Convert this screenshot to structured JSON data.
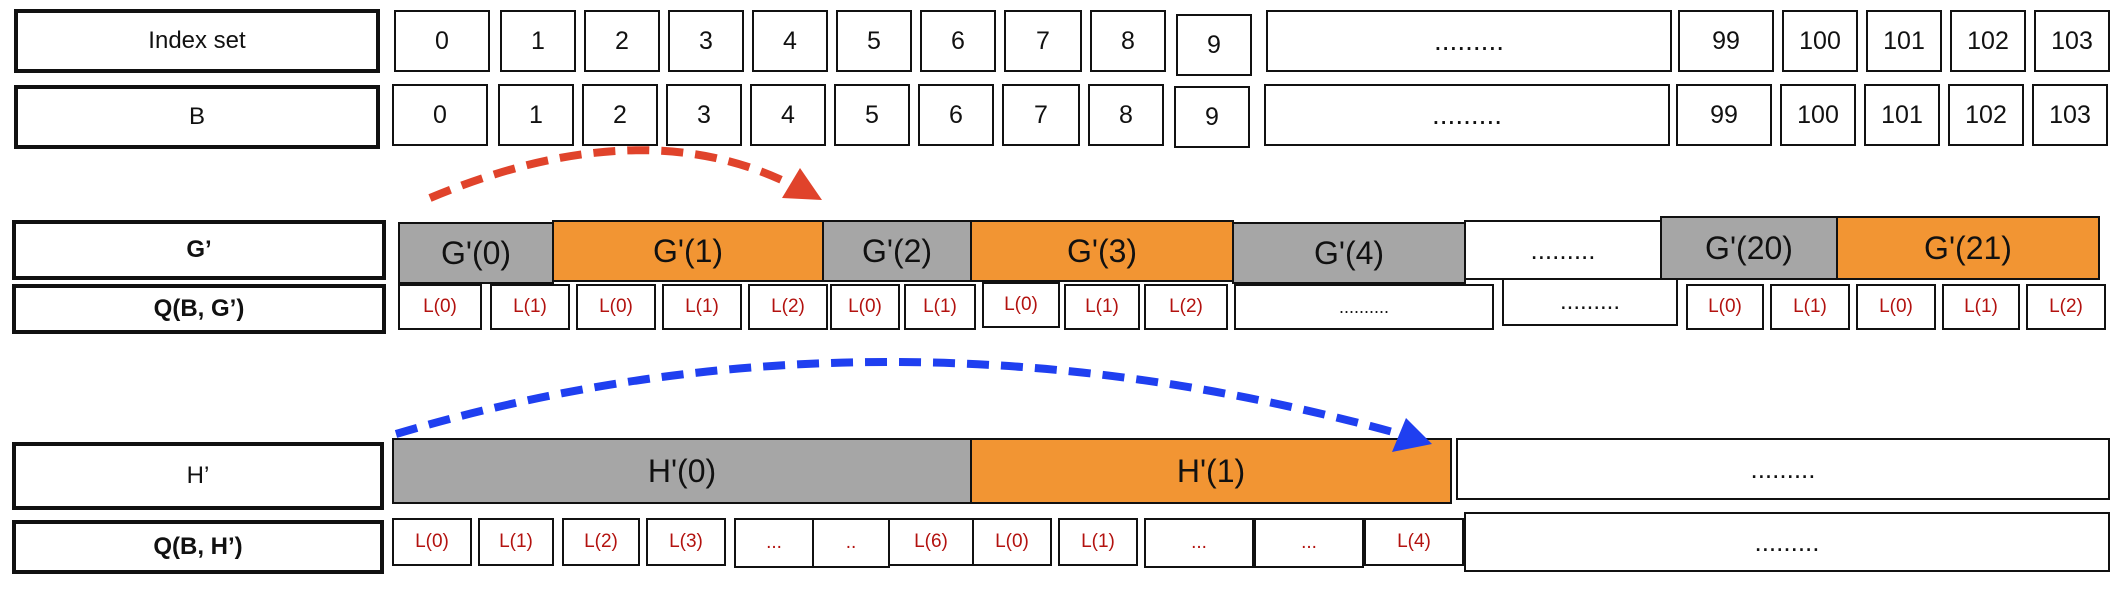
{
  "row_labels": {
    "index_set": "Index set",
    "b": "B",
    "g_prime": "G’",
    "q_b_g": "Q(B, G’)",
    "h_prime": "H’",
    "q_b_h": "Q(B, H’)"
  },
  "index_set": [
    "0",
    "1",
    "2",
    "3",
    "4",
    "5",
    "6",
    "7",
    "8",
    "9",
    ".........",
    "99",
    "100",
    "101",
    "102",
    "103"
  ],
  "b_values": [
    "0",
    "1",
    "2",
    "3",
    "4",
    "5",
    "6",
    "7",
    "8",
    "9",
    ".........",
    "99",
    "100",
    "101",
    "102",
    "103"
  ],
  "g_segments": [
    {
      "label": "G'(0)",
      "color": "gray"
    },
    {
      "label": "G'(1)",
      "color": "orange"
    },
    {
      "label": "G'(2)",
      "color": "gray"
    },
    {
      "label": "G'(3)",
      "color": "orange"
    },
    {
      "label": "G'(4)",
      "color": "gray"
    },
    {
      "label": ".........",
      "color": "white"
    },
    {
      "label": "G'(20)",
      "color": "gray"
    },
    {
      "label": "G'(21)",
      "color": "orange"
    }
  ],
  "q_g_cells": [
    "L(0)",
    "L(1)",
    "L(0)",
    "L(1)",
    "L(2)",
    "L(0)",
    "L(1)",
    "L(0)",
    "L(1)",
    "L(2)",
    "..........",
    ".........",
    "L(0)",
    "L(1)",
    "L(0)",
    "L(1)",
    "L(2)"
  ],
  "h_segments": [
    {
      "label": "H'(0)",
      "color": "gray"
    },
    {
      "label": "H'(1)",
      "color": "orange"
    },
    {
      "label": ".........",
      "color": "white"
    }
  ],
  "q_h_cells": [
    "L(0)",
    "L(1)",
    "L(2)",
    "L(3)",
    "...",
    "..",
    "L(6)",
    "L(0)",
    "L(1)",
    "...",
    "...",
    "L(4)",
    "........."
  ],
  "colors": {
    "gray": "#a6a6a6",
    "orange": "#f29533",
    "red_arrow": "#e0432b",
    "blue_arrow": "#1f3ff0",
    "cell_text": "#b3120f"
  }
}
